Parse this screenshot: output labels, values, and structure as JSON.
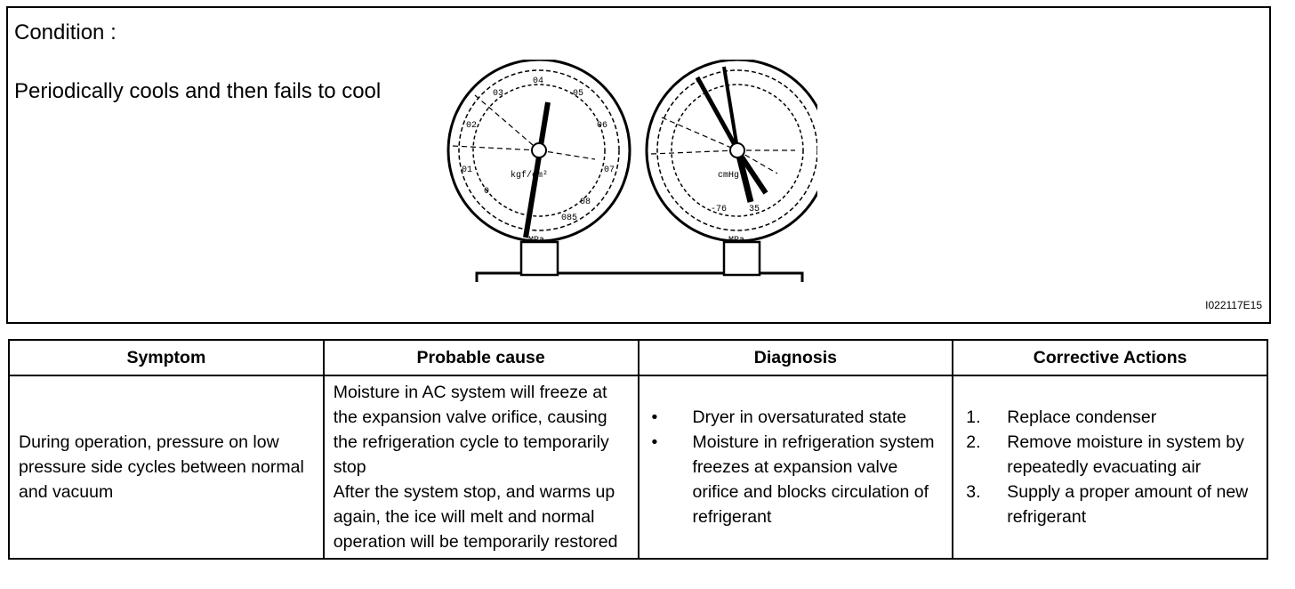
{
  "condition_label": "Condition :",
  "condition_text": "Periodically cools and then fails to cool",
  "figure_code": "I022117E15",
  "gauge_lettering": [
    "04",
    "03",
    "05",
    "02",
    "06",
    "01",
    "07",
    "0",
    "08",
    "085",
    "MPa",
    "kgf/cm²",
    "cmHg",
    "-76",
    "35"
  ],
  "table": {
    "headers": [
      "Symptom",
      "Probable cause",
      "Diagnosis",
      "Corrective Actions"
    ],
    "symptom": "During operation, pressure on low pressure side cycles between normal and vacuum",
    "cause": [
      "Moisture in AC system will freeze at the expansion valve orifice, causing the refrigeration cycle to temporarily stop",
      "After the system stop, and warms up again, the ice will melt and normal operation will be temporarily restored"
    ],
    "diagnosis": [
      "Dryer in oversaturated state",
      "Moisture in refrigeration system freezes at expansion valve orifice and blocks circulation of refrigerant"
    ],
    "diagnosis_bullet": "•",
    "actions": [
      {
        "n": "1.",
        "t": "Replace condenser"
      },
      {
        "n": "2.",
        "t": "Remove moisture in system by repeatedly evacuating air"
      },
      {
        "n": "3.",
        "t": "Supply a proper amount of new refrigerant"
      }
    ]
  }
}
